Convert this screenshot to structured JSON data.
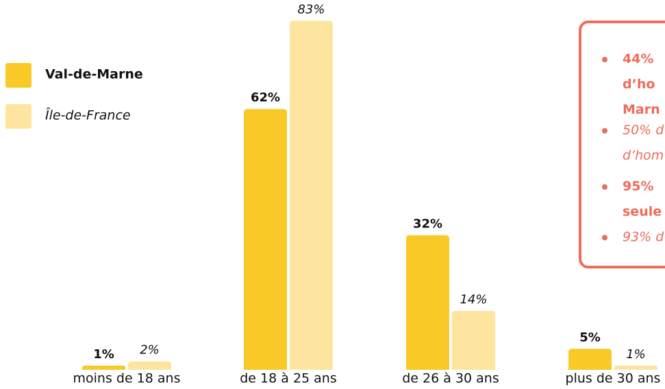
{
  "chart_data": {
    "type": "bar",
    "categories": [
      "moins de 18 ans",
      "de 18 à 25 ans",
      "de 26 à 30 ans",
      "plus de 30 ans"
    ],
    "series": [
      {
        "name": "Val-de-Marne",
        "color": "#f9c928",
        "values": [
          1,
          62,
          32,
          5
        ],
        "value_labels": [
          "1%",
          "62%",
          "32%",
          "5%"
        ]
      },
      {
        "name": "Île-de-France",
        "color": "#fde5a0",
        "values": [
          2,
          83,
          14,
          1
        ],
        "value_labels": [
          "2%",
          "83%",
          "14%",
          "1%"
        ]
      }
    ],
    "ylim": [
      0,
      85
    ],
    "annotations": [
      {
        "lines": [
          "44%",
          "d’ho",
          "Marn"
        ],
        "style": "bold"
      },
      {
        "lines": [
          "50% d",
          "d’hom"
        ],
        "style": "italic"
      },
      {
        "lines": [
          "95%",
          "seule"
        ],
        "style": "bold"
      },
      {
        "lines": [
          "93% d"
        ],
        "style": "italic"
      }
    ]
  }
}
